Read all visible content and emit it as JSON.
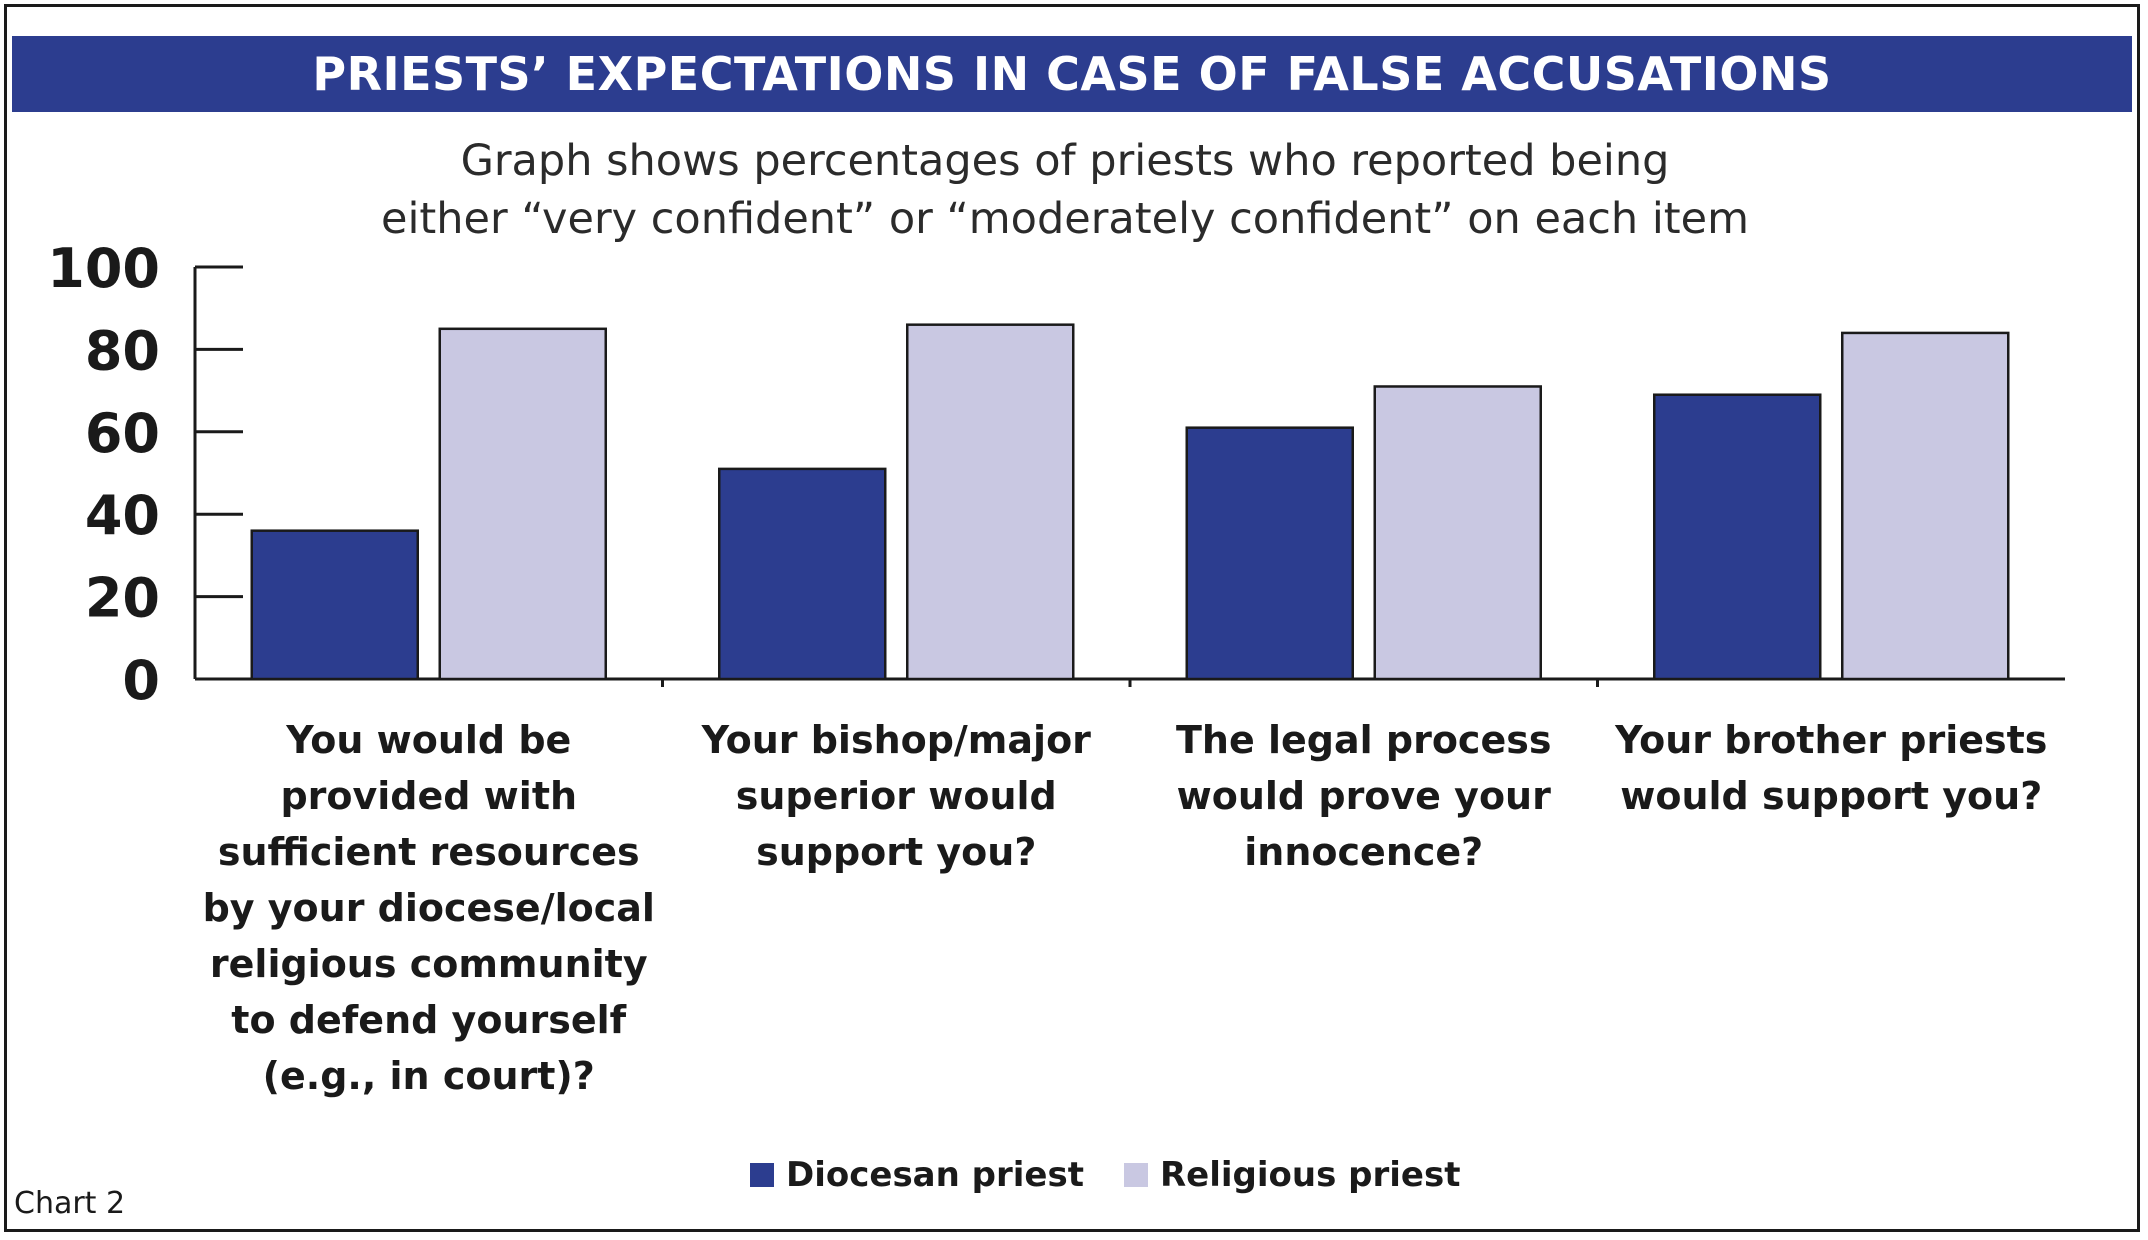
{
  "chart_data": {
    "type": "bar",
    "title": "PRIESTS’ EXPECTATIONS IN CASE OF FALSE ACCUSATIONS",
    "subtitle_lines": [
      "Graph shows percentages of priests who reported being",
      "either “very confident” or “moderately confident” on each item"
    ],
    "categories": [
      [
        "You would be",
        "provided with",
        "sufficient resources",
        "by your diocese/local",
        "religious community",
        "to defend yourself",
        "(e.g., in court)?"
      ],
      [
        "Your bishop/major",
        "superior would",
        "support you?"
      ],
      [
        "The legal process",
        "would prove your",
        "innocence?"
      ],
      [
        "Your brother priests",
        "would support you?"
      ]
    ],
    "series": [
      {
        "name": "Diocesan priest",
        "color": "#2c3d8f",
        "values": [
          36,
          51,
          61,
          69
        ]
      },
      {
        "name": "Religious priest",
        "color": "#c9c8e2",
        "values": [
          85,
          86,
          71,
          84
        ]
      }
    ],
    "ylim": [
      0,
      100
    ],
    "yticks": [
      "0",
      "20",
      "40",
      "60",
      "80",
      "100"
    ],
    "legend_position": "bottom-center",
    "grid": false
  },
  "note": "Chart 2"
}
